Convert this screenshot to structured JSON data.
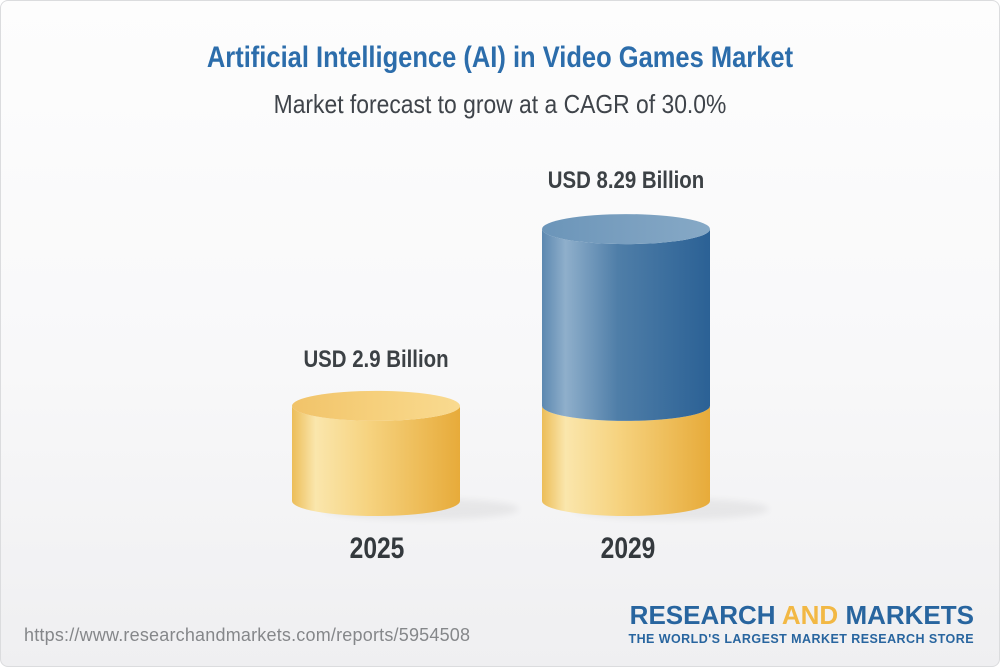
{
  "chart_data": {
    "type": "bar",
    "subtype": "3d-stacked-cylinder",
    "title": "Artificial Intelligence (AI) in Video Games Market",
    "subtitle": "Market forecast to grow at a CAGR of 30.0%",
    "cagr_percent": "30.0%",
    "unit": "USD Billion",
    "categories": [
      "2025",
      "2029"
    ],
    "values": [
      2.9,
      8.29
    ],
    "value_labels": [
      "USD 2.9 Billion",
      "USD 8.29 Billion"
    ],
    "stacks": [
      [
        {
          "value": 2.9,
          "color": "gold"
        }
      ],
      [
        {
          "value": 2.9,
          "color": "gold"
        },
        {
          "value": 5.39,
          "color": "blue"
        }
      ]
    ],
    "legend": "none",
    "grid": false,
    "axes": "none",
    "colors": {
      "gold_edge_left": "#ECBD58",
      "gold_highlight": "#FAE6AC",
      "gold_edge_right": "#E7AB3A",
      "blue_edge_left": "#5C88B0",
      "blue_highlight": "#8FAFCB",
      "blue_edge_right": "#2B6195",
      "title_blue": "#2C6DAB",
      "label_dark": "#3C4145"
    }
  },
  "footer": {
    "url": "https://www.researchandmarkets.com/reports/5954508",
    "logo": {
      "word1": "RESEARCH",
      "word2": "AND",
      "word3": "MARKETS"
    },
    "tagline": "THE WORLD'S LARGEST MARKET RESEARCH STORE"
  }
}
